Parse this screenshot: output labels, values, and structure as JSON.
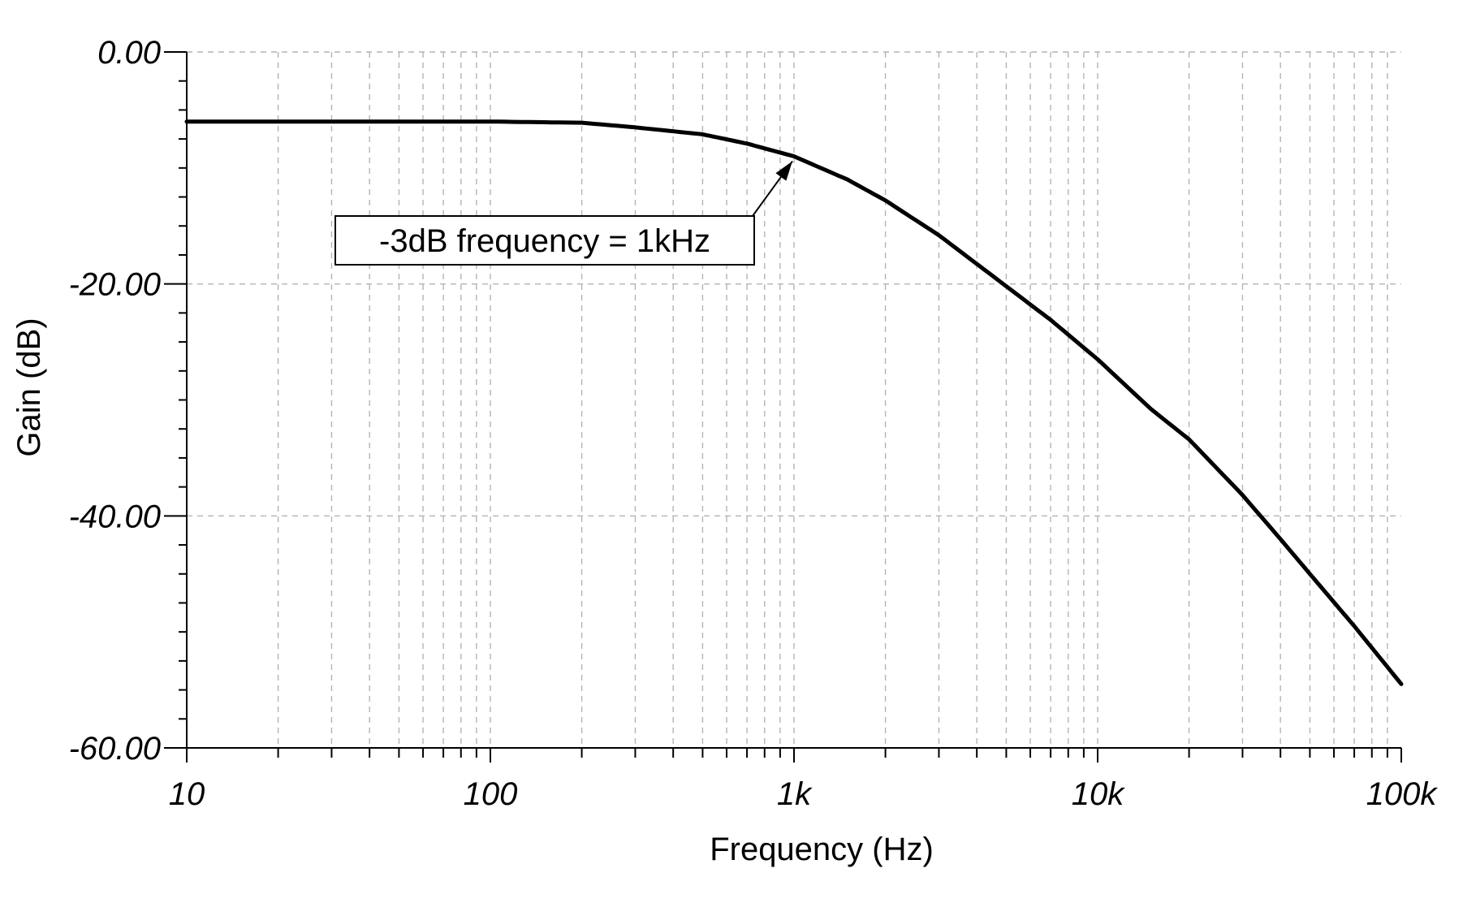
{
  "chart_data": {
    "type": "line",
    "xlabel": "Frequency (Hz)",
    "ylabel": "Gain (dB)",
    "xscale": "log",
    "xlim": [
      10,
      100000
    ],
    "ylim": [
      -60,
      0
    ],
    "grid": true,
    "x_ticks": [
      {
        "value": 10,
        "label": "10"
      },
      {
        "value": 100,
        "label": "100"
      },
      {
        "value": 1000,
        "label": "1k"
      },
      {
        "value": 10000,
        "label": "10k"
      },
      {
        "value": 100000,
        "label": "100k"
      }
    ],
    "y_ticks": [
      {
        "value": 0,
        "label": "0.00"
      },
      {
        "value": -20,
        "label": "-20.00"
      },
      {
        "value": -40,
        "label": "-40.00"
      },
      {
        "value": -60,
        "label": "-60.00"
      }
    ],
    "series": [
      {
        "color": "#000000",
        "x": [
          10,
          100,
          200,
          300,
          500,
          700,
          1000,
          1500,
          2000,
          3000,
          5000,
          7000,
          10000,
          15000,
          20000,
          30000,
          40000,
          50000,
          70000,
          100000
        ],
        "y": [
          -6.0,
          -6.0,
          -6.1,
          -6.5,
          -7.1,
          -7.9,
          -9.0,
          -11.0,
          -12.8,
          -15.8,
          -20.2,
          -23.1,
          -26.5,
          -30.8,
          -33.4,
          -38.2,
          -42.0,
          -45.0,
          -49.5,
          -54.5
        ]
      }
    ],
    "annotations": [
      {
        "text": "-3dB frequency = 1kHz",
        "target_x": 1000,
        "target_y": -9.0
      }
    ]
  }
}
